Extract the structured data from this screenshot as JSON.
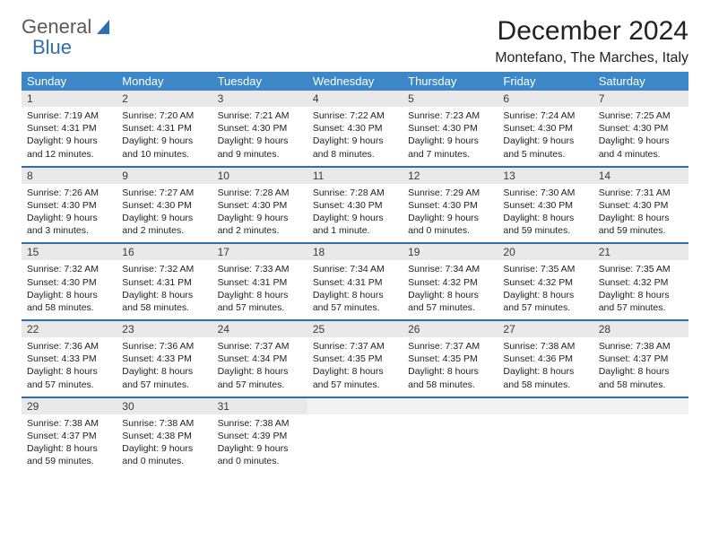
{
  "brand": {
    "word1": "General",
    "word2": "Blue"
  },
  "title": "December 2024",
  "subtitle": "Montefano, The Marches, Italy",
  "colors": {
    "header_bg": "#3b87c8",
    "header_text": "#ffffff",
    "row_divider": "#2f6fad",
    "daynum_bg": "#e9e9e9",
    "logo_accent": "#2f6fad"
  },
  "typography": {
    "title_fontsize": 30,
    "subtitle_fontsize": 16,
    "header_fontsize": 13,
    "daynum_fontsize": 12,
    "body_fontsize": 10.5
  },
  "layout": {
    "columns": 7,
    "rows": 5
  },
  "day_headers": [
    "Sunday",
    "Monday",
    "Tuesday",
    "Wednesday",
    "Thursday",
    "Friday",
    "Saturday"
  ],
  "weeks": [
    [
      {
        "num": "1",
        "sunrise": "Sunrise: 7:19 AM",
        "sunset": "Sunset: 4:31 PM",
        "day1": "Daylight: 9 hours",
        "day2": "and 12 minutes."
      },
      {
        "num": "2",
        "sunrise": "Sunrise: 7:20 AM",
        "sunset": "Sunset: 4:31 PM",
        "day1": "Daylight: 9 hours",
        "day2": "and 10 minutes."
      },
      {
        "num": "3",
        "sunrise": "Sunrise: 7:21 AM",
        "sunset": "Sunset: 4:30 PM",
        "day1": "Daylight: 9 hours",
        "day2": "and 9 minutes."
      },
      {
        "num": "4",
        "sunrise": "Sunrise: 7:22 AM",
        "sunset": "Sunset: 4:30 PM",
        "day1": "Daylight: 9 hours",
        "day2": "and 8 minutes."
      },
      {
        "num": "5",
        "sunrise": "Sunrise: 7:23 AM",
        "sunset": "Sunset: 4:30 PM",
        "day1": "Daylight: 9 hours",
        "day2": "and 7 minutes."
      },
      {
        "num": "6",
        "sunrise": "Sunrise: 7:24 AM",
        "sunset": "Sunset: 4:30 PM",
        "day1": "Daylight: 9 hours",
        "day2": "and 5 minutes."
      },
      {
        "num": "7",
        "sunrise": "Sunrise: 7:25 AM",
        "sunset": "Sunset: 4:30 PM",
        "day1": "Daylight: 9 hours",
        "day2": "and 4 minutes."
      }
    ],
    [
      {
        "num": "8",
        "sunrise": "Sunrise: 7:26 AM",
        "sunset": "Sunset: 4:30 PM",
        "day1": "Daylight: 9 hours",
        "day2": "and 3 minutes."
      },
      {
        "num": "9",
        "sunrise": "Sunrise: 7:27 AM",
        "sunset": "Sunset: 4:30 PM",
        "day1": "Daylight: 9 hours",
        "day2": "and 2 minutes."
      },
      {
        "num": "10",
        "sunrise": "Sunrise: 7:28 AM",
        "sunset": "Sunset: 4:30 PM",
        "day1": "Daylight: 9 hours",
        "day2": "and 2 minutes."
      },
      {
        "num": "11",
        "sunrise": "Sunrise: 7:28 AM",
        "sunset": "Sunset: 4:30 PM",
        "day1": "Daylight: 9 hours",
        "day2": "and 1 minute."
      },
      {
        "num": "12",
        "sunrise": "Sunrise: 7:29 AM",
        "sunset": "Sunset: 4:30 PM",
        "day1": "Daylight: 9 hours",
        "day2": "and 0 minutes."
      },
      {
        "num": "13",
        "sunrise": "Sunrise: 7:30 AM",
        "sunset": "Sunset: 4:30 PM",
        "day1": "Daylight: 8 hours",
        "day2": "and 59 minutes."
      },
      {
        "num": "14",
        "sunrise": "Sunrise: 7:31 AM",
        "sunset": "Sunset: 4:30 PM",
        "day1": "Daylight: 8 hours",
        "day2": "and 59 minutes."
      }
    ],
    [
      {
        "num": "15",
        "sunrise": "Sunrise: 7:32 AM",
        "sunset": "Sunset: 4:30 PM",
        "day1": "Daylight: 8 hours",
        "day2": "and 58 minutes."
      },
      {
        "num": "16",
        "sunrise": "Sunrise: 7:32 AM",
        "sunset": "Sunset: 4:31 PM",
        "day1": "Daylight: 8 hours",
        "day2": "and 58 minutes."
      },
      {
        "num": "17",
        "sunrise": "Sunrise: 7:33 AM",
        "sunset": "Sunset: 4:31 PM",
        "day1": "Daylight: 8 hours",
        "day2": "and 57 minutes."
      },
      {
        "num": "18",
        "sunrise": "Sunrise: 7:34 AM",
        "sunset": "Sunset: 4:31 PM",
        "day1": "Daylight: 8 hours",
        "day2": "and 57 minutes."
      },
      {
        "num": "19",
        "sunrise": "Sunrise: 7:34 AM",
        "sunset": "Sunset: 4:32 PM",
        "day1": "Daylight: 8 hours",
        "day2": "and 57 minutes."
      },
      {
        "num": "20",
        "sunrise": "Sunrise: 7:35 AM",
        "sunset": "Sunset: 4:32 PM",
        "day1": "Daylight: 8 hours",
        "day2": "and 57 minutes."
      },
      {
        "num": "21",
        "sunrise": "Sunrise: 7:35 AM",
        "sunset": "Sunset: 4:32 PM",
        "day1": "Daylight: 8 hours",
        "day2": "and 57 minutes."
      }
    ],
    [
      {
        "num": "22",
        "sunrise": "Sunrise: 7:36 AM",
        "sunset": "Sunset: 4:33 PM",
        "day1": "Daylight: 8 hours",
        "day2": "and 57 minutes."
      },
      {
        "num": "23",
        "sunrise": "Sunrise: 7:36 AM",
        "sunset": "Sunset: 4:33 PM",
        "day1": "Daylight: 8 hours",
        "day2": "and 57 minutes."
      },
      {
        "num": "24",
        "sunrise": "Sunrise: 7:37 AM",
        "sunset": "Sunset: 4:34 PM",
        "day1": "Daylight: 8 hours",
        "day2": "and 57 minutes."
      },
      {
        "num": "25",
        "sunrise": "Sunrise: 7:37 AM",
        "sunset": "Sunset: 4:35 PM",
        "day1": "Daylight: 8 hours",
        "day2": "and 57 minutes."
      },
      {
        "num": "26",
        "sunrise": "Sunrise: 7:37 AM",
        "sunset": "Sunset: 4:35 PM",
        "day1": "Daylight: 8 hours",
        "day2": "and 58 minutes."
      },
      {
        "num": "27",
        "sunrise": "Sunrise: 7:38 AM",
        "sunset": "Sunset: 4:36 PM",
        "day1": "Daylight: 8 hours",
        "day2": "and 58 minutes."
      },
      {
        "num": "28",
        "sunrise": "Sunrise: 7:38 AM",
        "sunset": "Sunset: 4:37 PM",
        "day1": "Daylight: 8 hours",
        "day2": "and 58 minutes."
      }
    ],
    [
      {
        "num": "29",
        "sunrise": "Sunrise: 7:38 AM",
        "sunset": "Sunset: 4:37 PM",
        "day1": "Daylight: 8 hours",
        "day2": "and 59 minutes."
      },
      {
        "num": "30",
        "sunrise": "Sunrise: 7:38 AM",
        "sunset": "Sunset: 4:38 PM",
        "day1": "Daylight: 9 hours",
        "day2": "and 0 minutes."
      },
      {
        "num": "31",
        "sunrise": "Sunrise: 7:38 AM",
        "sunset": "Sunset: 4:39 PM",
        "day1": "Daylight: 9 hours",
        "day2": "and 0 minutes."
      },
      {
        "empty": true
      },
      {
        "empty": true
      },
      {
        "empty": true
      },
      {
        "empty": true
      }
    ]
  ]
}
